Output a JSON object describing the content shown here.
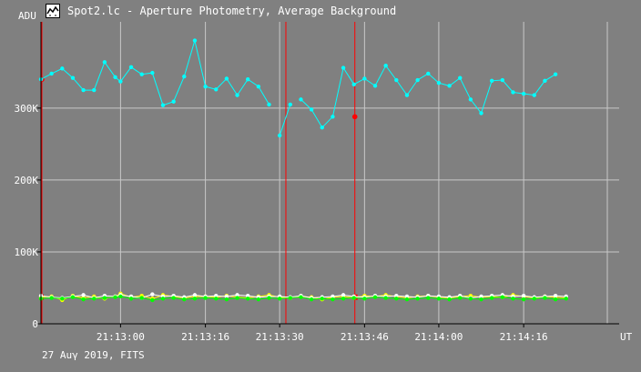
{
  "window": {
    "title": "Spot2.lc - Aperture Photometry, Average Background"
  },
  "footer": {
    "date_label": "27 Auγ 2019, FITS"
  },
  "icon": "lightcurve-app-icon",
  "colors": {
    "background": "#808080",
    "grid": "#c8c8c8",
    "axis": "#000000",
    "cyan": "#00ffff",
    "yellow": "#ffff00",
    "white": "#ffffff",
    "green": "#00ff00",
    "marker": "#ff0000"
  },
  "chart_data": {
    "type": "line",
    "ylabel": "ADU",
    "xlabel": "UT",
    "ylim": [
      0,
      420000
    ],
    "xlim": [
      "21:12:45",
      "21:14:34"
    ],
    "y_ticks": [
      {
        "value": 0,
        "label": "0"
      },
      {
        "value": 100000,
        "label": "100K"
      },
      {
        "value": 200000,
        "label": "200K"
      },
      {
        "value": 300000,
        "label": "300K"
      }
    ],
    "x_ticks": [
      {
        "value": "21:13:00",
        "label": "21:13:00"
      },
      {
        "value": "21:13:16",
        "label": "21:13:16"
      },
      {
        "value": "21:13:30",
        "label": "21:13:30"
      },
      {
        "value": "21:13:46",
        "label": "21:13:46"
      },
      {
        "value": "21:14:00",
        "label": "21:14:00"
      },
      {
        "value": "21:14:16",
        "label": "21:14:16"
      }
    ],
    "markers": [
      "21:12:45",
      "21:13:31",
      "21:13:44"
    ],
    "grid": true,
    "x": [
      "21:12:45",
      "21:12:47",
      "21:12:49",
      "21:12:51",
      "21:12:53",
      "21:12:55",
      "21:12:57",
      "21:12:59",
      "21:13:00",
      "21:13:02",
      "21:13:04",
      "21:13:06",
      "21:13:08",
      "21:13:10",
      "21:13:12",
      "21:13:14",
      "21:13:16",
      "21:13:18",
      "21:13:20",
      "21:13:22",
      "21:13:24",
      "21:13:26",
      "21:13:28",
      "21:13:30",
      "21:13:32",
      "21:13:34",
      "21:13:36",
      "21:13:38",
      "21:13:40",
      "21:13:42",
      "21:13:44",
      "21:13:46",
      "21:13:48",
      "21:13:50",
      "21:13:52",
      "21:13:54",
      "21:13:56",
      "21:13:58",
      "21:14:00",
      "21:14:02",
      "21:14:04",
      "21:14:06",
      "21:14:08",
      "21:14:10",
      "21:14:12",
      "21:14:14",
      "21:14:16",
      "21:14:18",
      "21:14:20",
      "21:14:22",
      "21:14:24",
      "21:14:26",
      "21:14:28",
      "21:14:30",
      "21:14:32"
    ],
    "series": [
      {
        "color": "cyan",
        "values": [
          340000,
          348000,
          355000,
          342000,
          325000,
          325000,
          364000,
          343000,
          337000,
          357000,
          347000,
          349000,
          304000,
          309000,
          344000,
          394000,
          330000,
          326000,
          341000,
          318000,
          340000,
          330000,
          305000,
          262000,
          305000,
          312000,
          298000,
          273000,
          288000,
          356000,
          333000,
          341000,
          331000,
          359000,
          339000,
          318000,
          339000,
          348000,
          335000,
          331000,
          342000,
          312000,
          293000,
          338000,
          339000,
          322000,
          320000,
          318000,
          338000,
          347000,
          null,
          null,
          null,
          null,
          null
        ],
        "gaps": [
          22,
          24
        ]
      },
      {
        "color": "yellow",
        "values": [
          37000,
          38000,
          33000,
          39000,
          36000,
          38000,
          35000,
          38000,
          42000,
          37000,
          39000,
          35000,
          40000,
          38000,
          36000,
          38000,
          38000,
          37000,
          39000,
          37000,
          36000,
          38000,
          40000,
          37000,
          36000,
          38000,
          37000,
          34000,
          37000,
          38000,
          36000,
          39000,
          38000,
          40000,
          38000,
          36000,
          38000,
          39000,
          37000,
          36000,
          38000,
          39000,
          37000,
          38000,
          37000,
          40000,
          38000,
          36000,
          38000,
          37000,
          36000,
          null,
          null,
          null,
          null
        ]
      },
      {
        "color": "white",
        "values": [
          39000,
          37000,
          36000,
          38000,
          40000,
          36000,
          39000,
          38000,
          40000,
          38000,
          36000,
          41000,
          38000,
          39000,
          37000,
          40000,
          38000,
          39000,
          38000,
          40000,
          39000,
          37000,
          38000,
          38000,
          37000,
          39000,
          36000,
          37000,
          38000,
          40000,
          38000,
          37000,
          39000,
          38000,
          39000,
          38000,
          37000,
          39000,
          38000,
          37000,
          39000,
          36000,
          38000,
          39000,
          40000,
          38000,
          39000,
          37000,
          38000,
          39000,
          38000,
          null,
          null,
          null,
          null
        ]
      },
      {
        "color": "green",
        "values": [
          35000,
          36000,
          35000,
          37000,
          34000,
          35000,
          36000,
          37000,
          38000,
          35000,
          36000,
          33000,
          35000,
          36000,
          34000,
          35000,
          36000,
          35000,
          34000,
          36000,
          35000,
          34000,
          36000,
          35000,
          36000,
          37000,
          34000,
          35000,
          34000,
          35000,
          36000,
          35000,
          37000,
          36000,
          35000,
          34000,
          35000,
          36000,
          35000,
          34000,
          36000,
          35000,
          34000,
          36000,
          37000,
          35000,
          34000,
          35000,
          36000,
          34000,
          35000,
          null,
          null,
          null,
          null
        ]
      }
    ]
  }
}
